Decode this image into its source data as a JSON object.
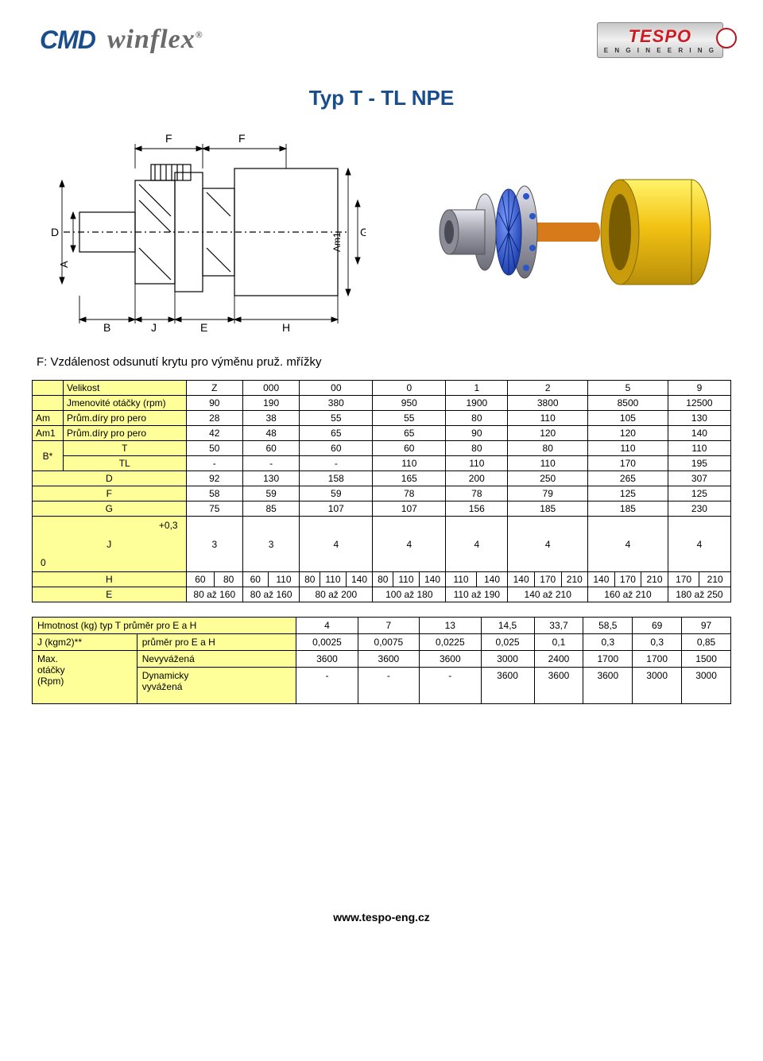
{
  "logos": {
    "cmd": "CMD",
    "winflex": "winflex",
    "winflex_r": "®",
    "tespo_main": "TESPO",
    "tespo_sub": "E N G I N E E R I N G"
  },
  "title": "Typ T - TL NPE",
  "note": "F: Vzdálenost odsunutí krytu pro výměnu pruž. mřížky",
  "diagram": {
    "F_left": "F",
    "F_right": "F",
    "D": "D",
    "A": "A",
    "Am1": "Am1",
    "G": "G",
    "B": "B",
    "J": "J",
    "E": "E",
    "H": "H"
  },
  "render_colors": {
    "yellow": "#f2c213",
    "grey": "#a8a8b0",
    "blue": "#2b56c8",
    "orange": "#d77a1a"
  },
  "table1": {
    "rows": [
      {
        "label1": "",
        "label2": "Velikost",
        "cells": [
          "Z",
          "000",
          "00",
          "0",
          "1",
          "2",
          "5",
          "9"
        ],
        "last_merge": false
      },
      {
        "label1": "",
        "label2": "Jmenovité otáčky (rpm)",
        "cells": [
          "90",
          "190",
          "380",
          "950",
          "1900",
          "3800",
          "8500",
          "12500"
        ],
        "last_merge": false
      },
      {
        "label1": "Am",
        "label2": "Prům.díry pro pero",
        "cells": [
          "28",
          "38",
          "55",
          "55",
          "80",
          "110",
          "105",
          "130"
        ],
        "last_merge": false
      },
      {
        "label1": "Am1",
        "label2": "Prům.díry pro pero",
        "cells": [
          "42",
          "48",
          "65",
          "65",
          "90",
          "120",
          "120",
          "140"
        ],
        "last_merge": false
      }
    ],
    "b_group": [
      {
        "l": "T",
        "cells": [
          "50",
          "60",
          "60",
          "60",
          "80",
          "80",
          "110",
          "110"
        ]
      },
      {
        "l": "TL",
        "cells": [
          "-",
          "-",
          "-",
          "110",
          "110",
          "110",
          "170",
          "195"
        ]
      }
    ],
    "b_label": "B*",
    "simple": [
      {
        "l": "D",
        "cells": [
          "92",
          "130",
          "158",
          "165",
          "200",
          "250",
          "265",
          "307"
        ]
      },
      {
        "l": "F",
        "cells": [
          "58",
          "59",
          "59",
          "78",
          "78",
          "79",
          "125",
          "125"
        ]
      },
      {
        "l": "G",
        "cells": [
          "75",
          "85",
          "107",
          "107",
          "156",
          "185",
          "185",
          "230"
        ]
      }
    ],
    "j_row": {
      "top": "+0,3",
      "l": "J",
      "bot": "0",
      "cells": [
        "3",
        "3",
        "4",
        "4",
        "4",
        "4",
        "4",
        "4"
      ]
    },
    "h_row": {
      "l": "H",
      "groups": [
        [
          "60",
          "80"
        ],
        [
          "60",
          "110"
        ],
        [
          "80",
          "110",
          "140"
        ],
        [
          "80",
          "110",
          "140"
        ],
        [
          "110",
          "140"
        ],
        [
          "140",
          "170",
          "210"
        ],
        [
          "140",
          "170",
          "210"
        ],
        [
          "170",
          "210"
        ]
      ]
    },
    "e_row": {
      "l": "E",
      "cells": [
        "80 až 160",
        "80 až 160",
        "80 až 200",
        "100 až 180",
        "110 až 190",
        "140 až 210",
        "160 až 210",
        "180 až 250"
      ]
    }
  },
  "table2": {
    "rows": [
      {
        "l1": "Hmotnost (kg) typ T průměr pro E a H",
        "l2": "",
        "span": 2,
        "cells": [
          "4",
          "7",
          "13",
          "14,5",
          "33,7",
          "58,5",
          "69",
          "97"
        ]
      },
      {
        "l1": "J (kgm2)**",
        "l2": "průměr pro E a H",
        "span": 1,
        "cells": [
          "0,0025",
          "0,0075",
          "0,0225",
          "0,025",
          "0,1",
          "0,3",
          "0,3",
          "0,85"
        ]
      }
    ],
    "max_group": {
      "l_main": "Max.\notáčky\n(Rpm)",
      "rows": [
        {
          "l": "Nevyvážená",
          "cells": [
            "3600",
            "3600",
            "3600",
            "3000",
            "2400",
            "1700",
            "1700",
            "1500"
          ]
        },
        {
          "l": "Dynamicky\nvyvážená",
          "cells": [
            "-",
            "-",
            "-",
            "3600",
            "3600",
            "3600",
            "3000",
            "3000"
          ]
        }
      ]
    }
  },
  "footer": "www.tespo-eng.cz"
}
